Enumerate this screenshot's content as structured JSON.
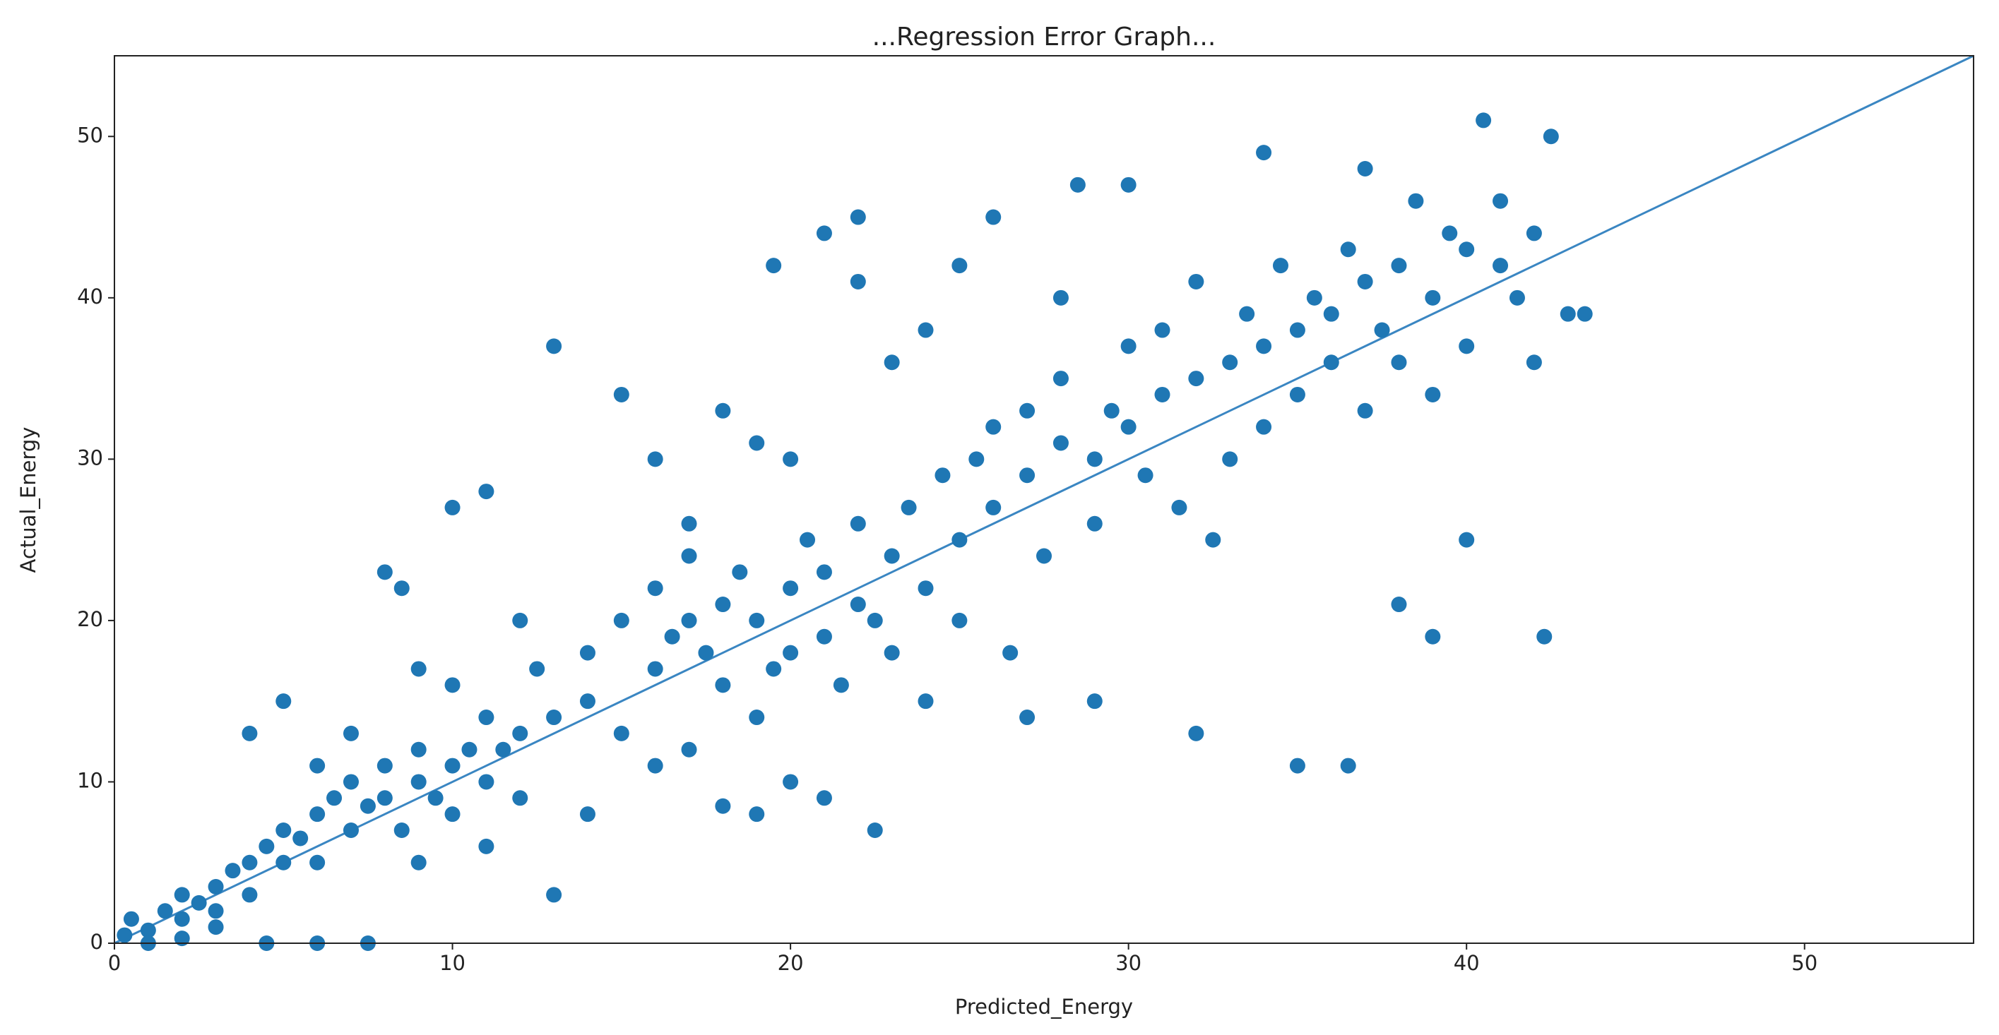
{
  "chart_data": {
    "type": "scatter",
    "title": "...Regression Error Graph...",
    "xlabel": "Predicted_Energy",
    "ylabel": "Actual_Energy",
    "xlim": [
      0,
      55
    ],
    "ylim": [
      0,
      55
    ],
    "xticks": [
      0,
      10,
      20,
      30,
      40,
      50
    ],
    "yticks": [
      0,
      10,
      20,
      30,
      40,
      50
    ],
    "lines": [
      {
        "x": [
          0,
          55
        ],
        "y": [
          0,
          55
        ],
        "color": "#3a86c2"
      }
    ],
    "series": [
      {
        "color": "#1f77b4",
        "x": [
          0.3,
          0.5,
          1,
          1.5,
          2,
          2,
          2.5,
          3,
          3,
          3.5,
          4,
          4,
          4.5,
          5,
          5,
          5.5,
          6,
          6,
          6.5,
          7,
          7,
          7.5,
          8,
          8,
          8.5,
          9,
          9,
          9.5,
          10,
          10,
          10.5,
          11,
          11,
          11.5,
          12,
          12,
          5,
          4,
          8,
          8.5,
          10,
          11,
          13,
          13,
          4.5,
          6,
          7.5,
          1,
          3,
          2,
          9,
          10,
          12,
          12.5,
          7,
          6,
          9,
          11,
          13,
          14,
          14,
          15,
          15,
          15,
          16,
          16,
          16.5,
          17,
          17,
          17.5,
          18,
          18,
          18.5,
          19,
          19,
          19.5,
          20,
          20,
          20.5,
          21,
          21,
          21.5,
          22,
          22,
          22.5,
          23,
          23,
          23.5,
          24,
          24,
          24.5,
          25,
          25,
          19.5,
          21,
          22,
          22,
          20,
          21,
          22.5,
          19,
          18,
          17,
          16,
          18,
          19,
          23,
          24,
          14,
          16,
          17,
          20,
          25.5,
          26,
          26,
          26.5,
          27,
          27,
          27.5,
          28,
          28,
          28.5,
          29,
          29,
          29.5,
          30,
          30,
          30.5,
          31,
          31,
          31.5,
          32,
          32,
          32.5,
          33,
          33,
          33.5,
          34,
          34,
          34.5,
          35,
          35,
          35.5,
          36,
          36,
          36.5,
          37,
          37,
          37.5,
          38,
          38,
          38.5,
          39,
          39,
          39.5,
          40,
          40,
          40.5,
          41,
          41,
          41.5,
          42,
          42,
          42.5,
          43,
          43.5,
          42.3,
          36.5,
          35,
          32,
          27,
          29,
          30,
          26,
          34,
          37,
          38,
          39,
          40,
          25,
          28
        ],
        "y": [
          0.5,
          1.5,
          0.8,
          2,
          1.5,
          3,
          2.5,
          3.5,
          2,
          4.5,
          5,
          3,
          6,
          5,
          7,
          6.5,
          8,
          5,
          9,
          7,
          10,
          8.5,
          9,
          11,
          7,
          10,
          12,
          9,
          11,
          8,
          12,
          10,
          14,
          12,
          13,
          9,
          15,
          13,
          23,
          22,
          27,
          28,
          37,
          3,
          0,
          0,
          0,
          0,
          1,
          0.3,
          17,
          16,
          20,
          17,
          13,
          11,
          5,
          6,
          14,
          15,
          18,
          13,
          20,
          34,
          17,
          22,
          19,
          20,
          24,
          18,
          21,
          16,
          23,
          20,
          14,
          17,
          22,
          18,
          25,
          19,
          23,
          16,
          21,
          26,
          20,
          24,
          18,
          27,
          22,
          15,
          29,
          25,
          20,
          42,
          44,
          45,
          41,
          10,
          9,
          7,
          8,
          8.5,
          26,
          30,
          33,
          31,
          36,
          38,
          8,
          11,
          12,
          30,
          30,
          27,
          32,
          18,
          29,
          33,
          24,
          31,
          35,
          47,
          30,
          26,
          33,
          32,
          37,
          29,
          34,
          38,
          27,
          35,
          41,
          25,
          36,
          30,
          39,
          37,
          32,
          42,
          38,
          34,
          40,
          39,
          36,
          43,
          41,
          33,
          38,
          42,
          36,
          46,
          40,
          34,
          44,
          43,
          37,
          51,
          42,
          46,
          40,
          44,
          36,
          50,
          39,
          39,
          19,
          11,
          11,
          13,
          14,
          15,
          47,
          45,
          49,
          48,
          21,
          19,
          25,
          42,
          40
        ]
      }
    ]
  }
}
